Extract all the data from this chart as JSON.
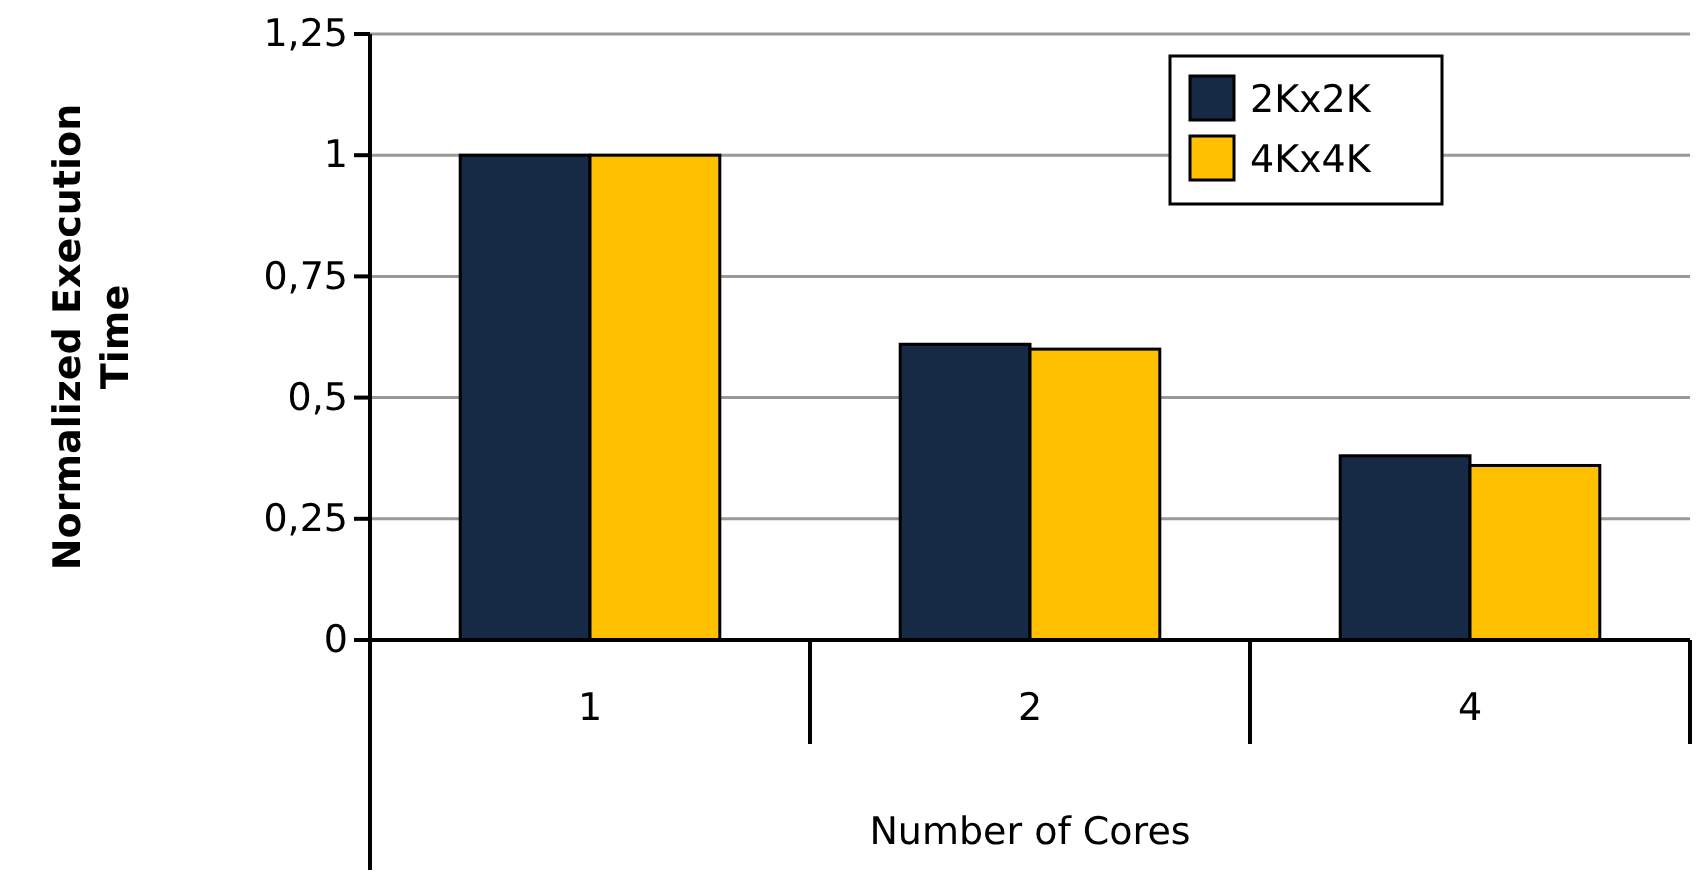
{
  "chart_data": {
    "type": "bar",
    "xlabel": "Number of Cores",
    "ylabel": "Normalized Execution Time",
    "categories": [
      "1",
      "2",
      "4"
    ],
    "series": [
      {
        "name": "2Kx2K",
        "color": "#172a45",
        "values": [
          1,
          0.61,
          0.38
        ]
      },
      {
        "name": "4Kx4K",
        "color": "#ffc000",
        "values": [
          1,
          0.6,
          0.36
        ]
      }
    ],
    "ylim": [
      0,
      1.25
    ],
    "yticks": [
      0,
      {
        "value": 0.25,
        "label": "0,25"
      },
      {
        "value": 0.5,
        "label": "0,5"
      },
      {
        "value": 0.75,
        "label": "0,75"
      },
      1,
      {
        "value": 1.25,
        "label": "1,25"
      }
    ],
    "grid": "y",
    "legend": "top right"
  }
}
